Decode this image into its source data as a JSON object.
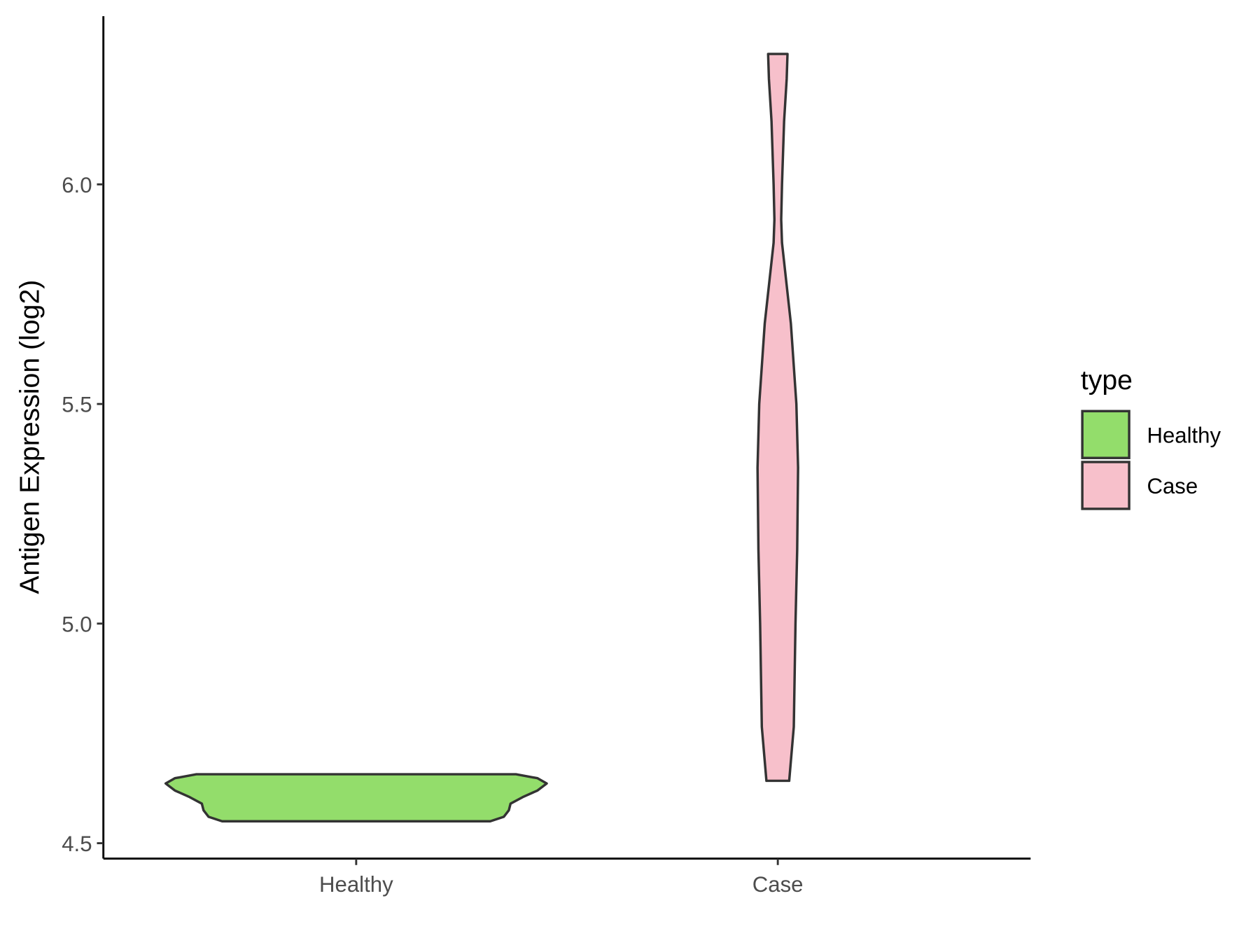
{
  "chart_data": {
    "type": "violin",
    "y_label": "Antigen Expression (log2)",
    "categories": [
      "Healthy",
      "Case"
    ],
    "legend_title": "type",
    "legend_position": "right",
    "ylim": [
      4.465,
      6.383
    ],
    "yticks": [
      4.5,
      {
        "value": 5,
        "label": "5.0"
      },
      5.5,
      {
        "value": 6,
        "label": "6.0"
      }
    ],
    "grid": false,
    "series": [
      {
        "name": "Healthy",
        "color": "#93dd6b",
        "y": [
          4.55,
          4.56,
          4.575,
          4.59,
          4.605,
          4.62,
          4.636,
          4.648,
          4.657
        ],
        "width": [
          0.318,
          0.35,
          0.362,
          0.366,
          0.395,
          0.43,
          0.452,
          0.43,
          0.379
        ]
      },
      {
        "name": "Case",
        "color": "#f7c0cb",
        "y": [
          4.642,
          4.765,
          5.0,
          5.168,
          5.355,
          5.5,
          5.683,
          5.867,
          5.92,
          6.0,
          6.144,
          6.24,
          6.297
        ],
        "width": [
          0.027,
          0.038,
          0.042,
          0.046,
          0.048,
          0.044,
          0.031,
          0.01,
          0.008,
          0.01,
          0.015,
          0.021,
          0.023
        ]
      }
    ]
  }
}
